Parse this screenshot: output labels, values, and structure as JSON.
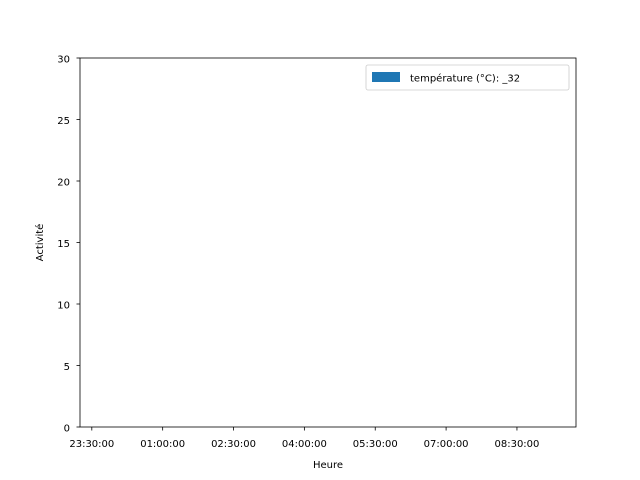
{
  "chart_data": {
    "type": "bar",
    "title": "",
    "xlabel": "Heure",
    "ylabel": "Activité",
    "ylim": [
      0,
      30
    ],
    "yticks": [
      0,
      5,
      10,
      15,
      20,
      25,
      30
    ],
    "x_range": [
      "23:15:00",
      "09:45:00"
    ],
    "xticks": [
      "23:30:00",
      "01:00:00",
      "02:30:00",
      "04:00:00",
      "05:30:00",
      "07:00:00",
      "08:30:00"
    ],
    "grid": false,
    "legend_position": "top-right",
    "series": [
      {
        "name": "température (°C): _32",
        "color": "#1f77b4",
        "x": [],
        "values": []
      }
    ]
  }
}
